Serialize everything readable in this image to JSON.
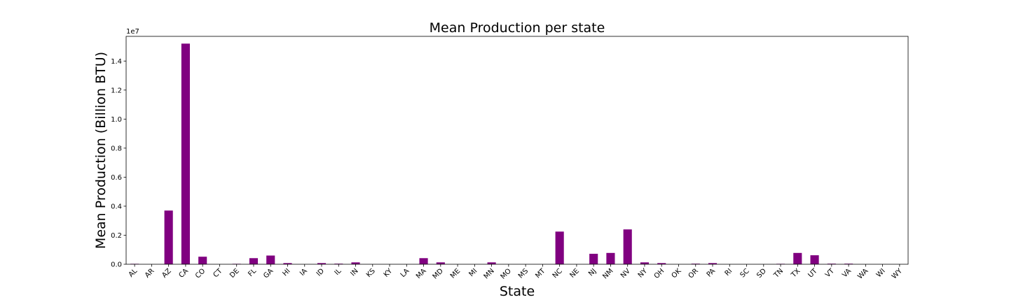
{
  "chart_data": {
    "type": "bar",
    "title": "Mean Production per state",
    "xlabel": "State",
    "ylabel": "Mean Production (Billion BTU)",
    "y_offset_label": "1e7",
    "y_scale": 10000000,
    "ylim": [
      0,
      15700000
    ],
    "yticks": [
      0,
      2000000,
      4000000,
      6000000,
      8000000,
      10000000,
      12000000,
      14000000
    ],
    "ytick_labels": [
      "0.0",
      "0.2",
      "0.4",
      "0.6",
      "0.8",
      "1.0",
      "1.2",
      "1.4"
    ],
    "grid": false,
    "bar_color": "#800080",
    "categories": [
      "AL",
      "AR",
      "AZ",
      "CA",
      "CO",
      "CT",
      "DE",
      "FL",
      "GA",
      "HI",
      "IA",
      "ID",
      "IL",
      "IN",
      "KS",
      "KY",
      "LA",
      "MA",
      "MD",
      "ME",
      "MI",
      "MN",
      "MO",
      "MS",
      "MT",
      "NC",
      "NE",
      "NJ",
      "NM",
      "NV",
      "NY",
      "OH",
      "OK",
      "OR",
      "PA",
      "RI",
      "SC",
      "SD",
      "TN",
      "TX",
      "UT",
      "VT",
      "VA",
      "WA",
      "WI",
      "WY"
    ],
    "values": [
      30000,
      0,
      3700000,
      15200000,
      520000,
      0,
      30000,
      420000,
      600000,
      80000,
      0,
      80000,
      40000,
      130000,
      0,
      0,
      0,
      420000,
      130000,
      0,
      0,
      130000,
      0,
      0,
      0,
      2250000,
      0,
      720000,
      780000,
      2400000,
      130000,
      80000,
      0,
      40000,
      80000,
      0,
      0,
      0,
      30000,
      780000,
      620000,
      40000,
      40000,
      0,
      0,
      0
    ]
  }
}
